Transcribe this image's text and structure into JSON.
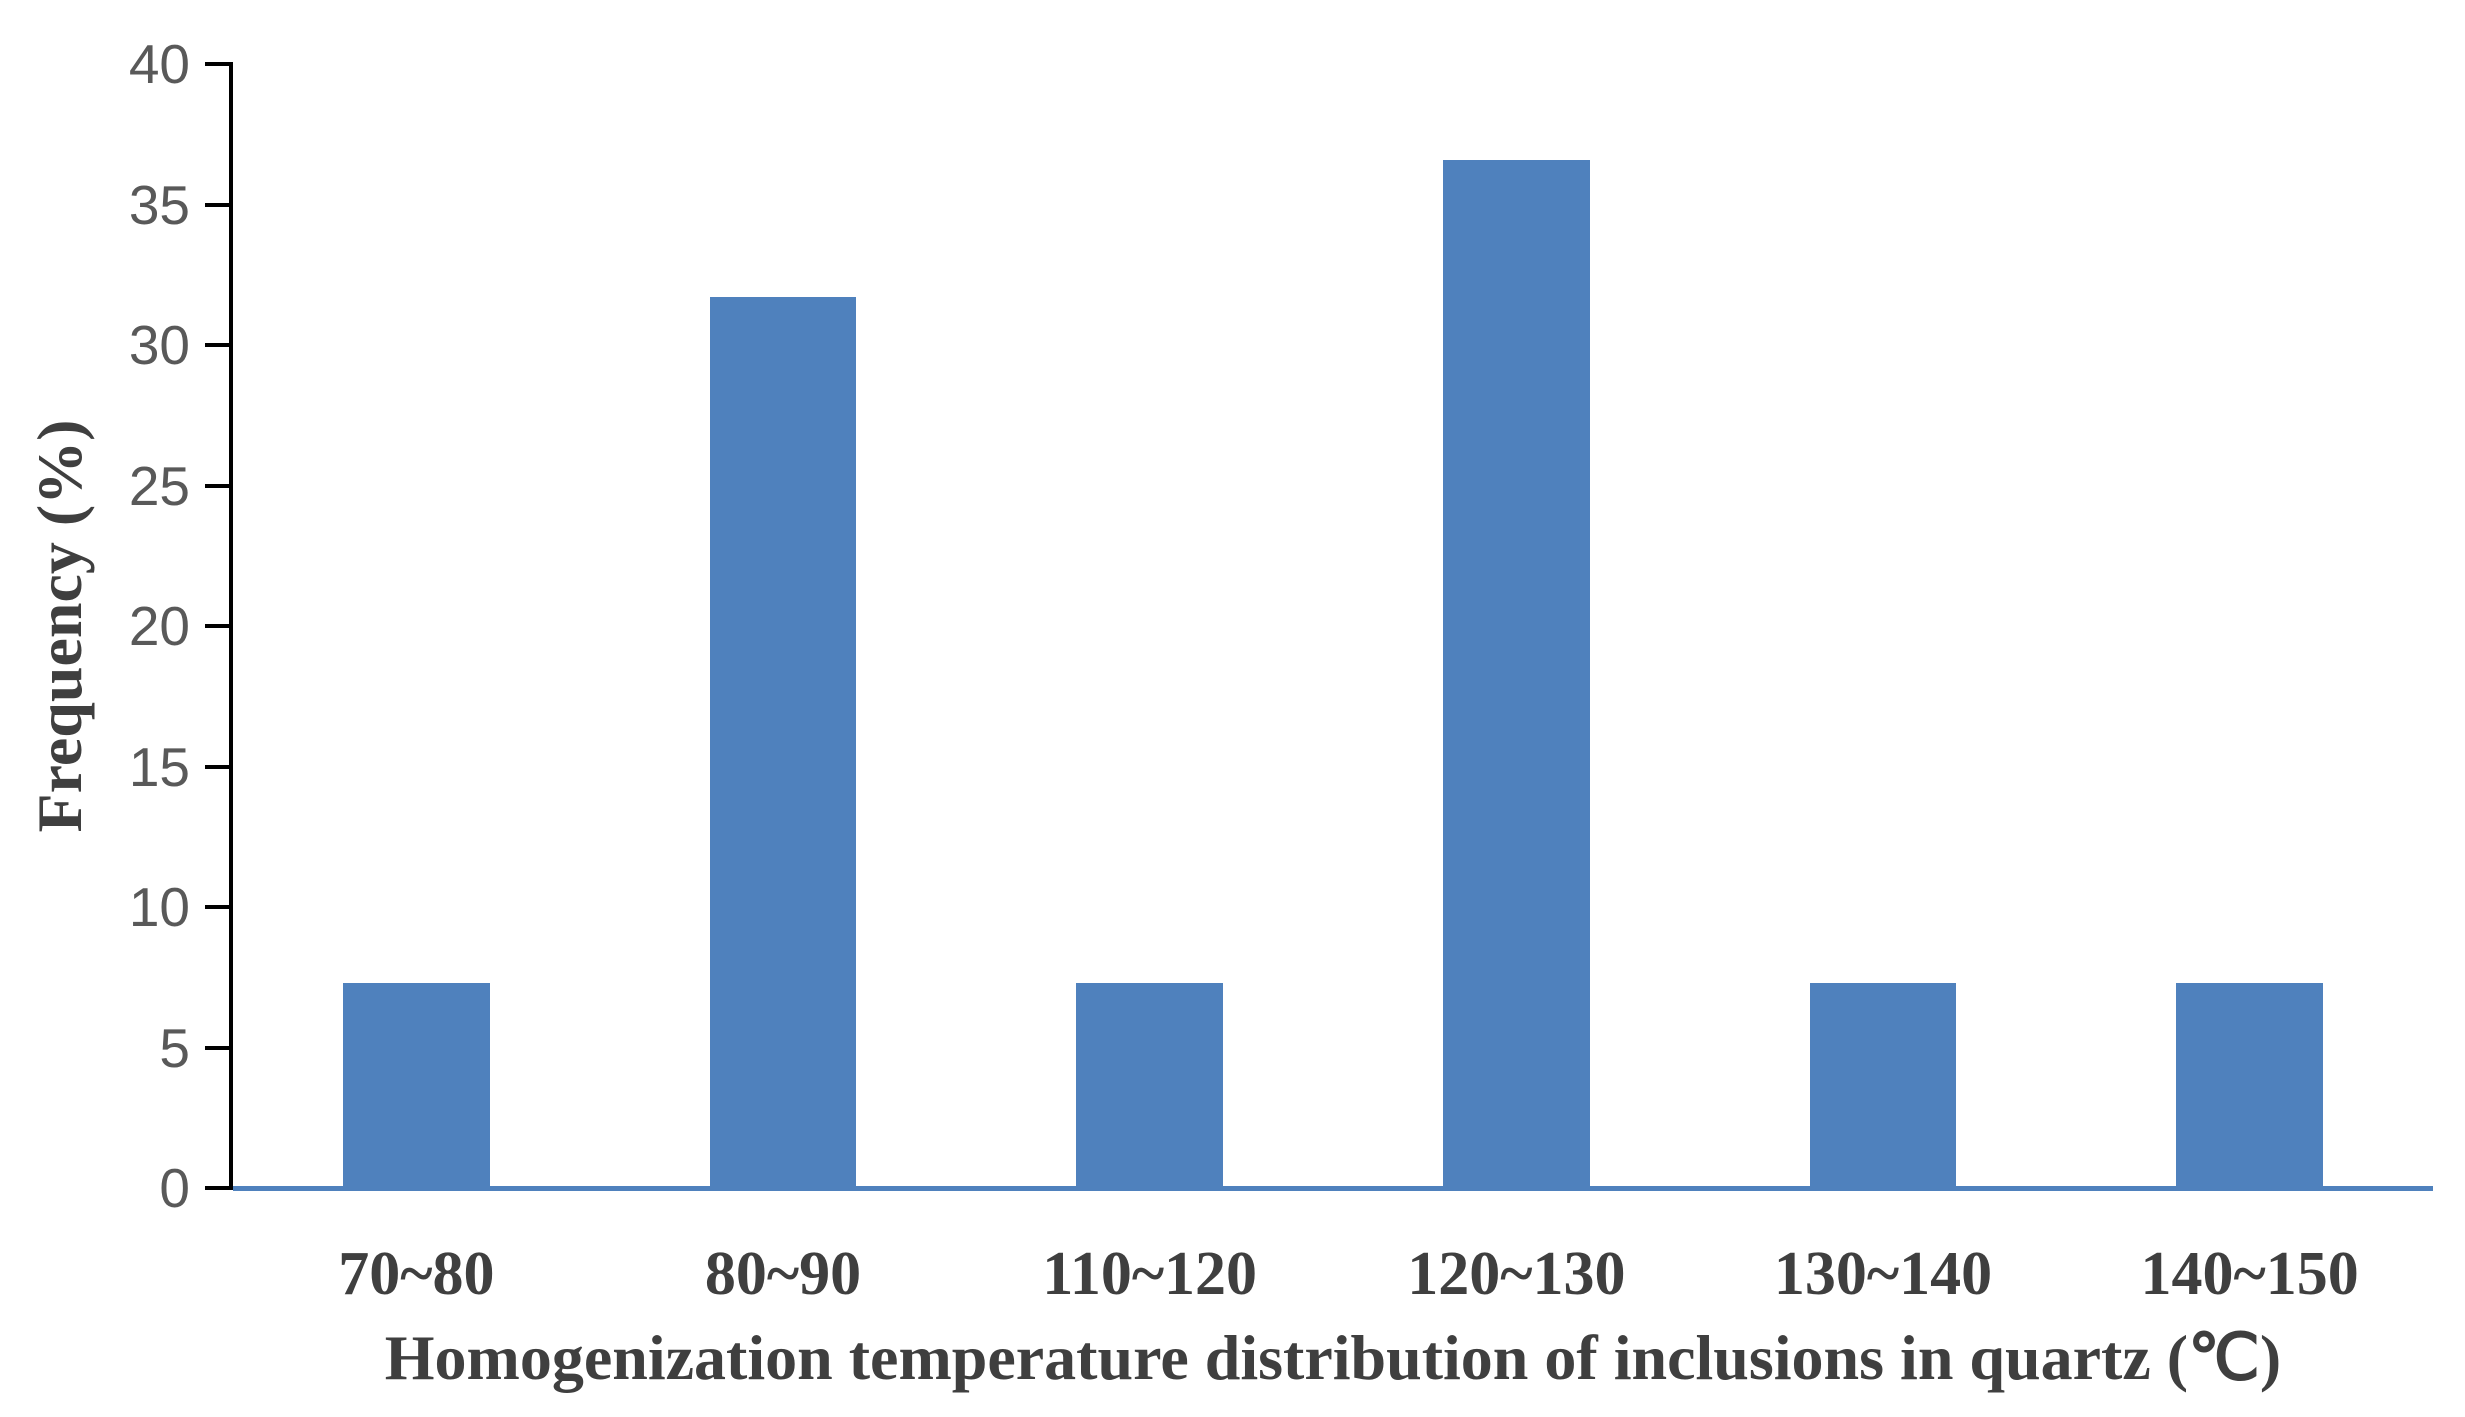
{
  "chart_data": {
    "type": "bar",
    "categories": [
      "70~80",
      "80~90",
      "110~120",
      "120~130",
      "130~140",
      "140~150"
    ],
    "values": [
      7.3,
      31.7,
      7.3,
      36.6,
      7.3,
      7.3
    ],
    "xlabel": "Homogenization temperature distribution of inclusions in quartz (℃)",
    "ylabel": "Frequency (%)",
    "ylim": [
      0,
      40
    ],
    "yticks": [
      0,
      5,
      10,
      15,
      20,
      25,
      30,
      35,
      40
    ],
    "grid": false,
    "legend": "none",
    "bar_gap_ratio": 0.4,
    "colors": {
      "bar": "#4F81BD",
      "x_axis_line": "#4F81BD",
      "y_axis_line": "#000000",
      "y_tick_mark": "#000000",
      "tick_text": "#595959",
      "label_text": "#3F3F3F",
      "background": "#FFFFFF"
    }
  }
}
